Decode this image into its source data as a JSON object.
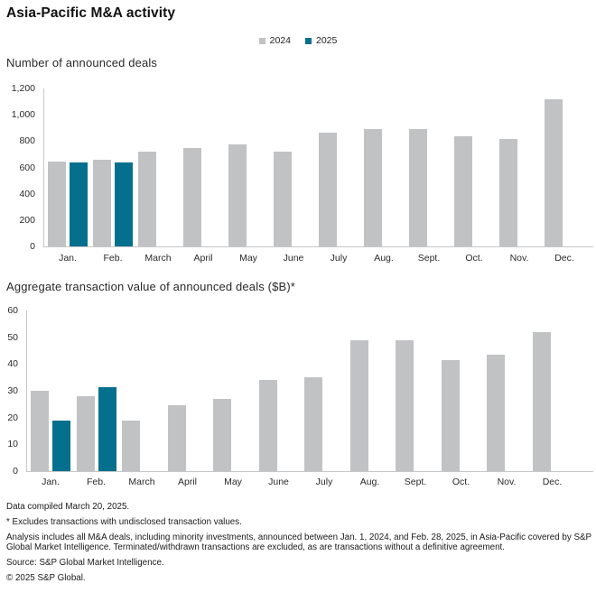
{
  "title": "Asia-Pacific M&A activity",
  "legend": {
    "items": [
      {
        "label": "2024",
        "color": "#c1c2c4"
      },
      {
        "label": "2025",
        "color": "#04708e"
      }
    ]
  },
  "colors": {
    "series_2024": "#c1c2c4",
    "series_2025": "#04708e",
    "axis_line": "#c6c7c9",
    "text": "#1a1a1a"
  },
  "chart_data": [
    {
      "type": "bar",
      "title": "Number of announced deals",
      "categories": [
        "Jan.",
        "Feb.",
        "March",
        "April",
        "May",
        "June",
        "July",
        "Aug.",
        "Sept.",
        "Oct.",
        "Nov.",
        "Dec."
      ],
      "series": [
        {
          "name": "2024",
          "color": "#c1c2c4",
          "values": [
            645,
            655,
            720,
            745,
            775,
            720,
            865,
            890,
            890,
            840,
            815,
            1120
          ]
        },
        {
          "name": "2025",
          "color": "#04708e",
          "values": [
            635,
            640,
            null,
            null,
            null,
            null,
            null,
            null,
            null,
            null,
            null,
            null
          ]
        }
      ],
      "xlabel": "",
      "ylabel": "",
      "ylim": [
        0,
        1200
      ],
      "yticks": [
        0,
        200,
        400,
        600,
        800,
        1000,
        1200
      ],
      "ytick_labels": [
        "0",
        "200",
        "400",
        "600",
        "800",
        "1,000",
        "1,200"
      ],
      "grid": false,
      "legend_position": "top-center"
    },
    {
      "type": "bar",
      "title": "Aggregate transaction value of announced deals ($B)*",
      "categories": [
        "Jan.",
        "Feb.",
        "March",
        "April",
        "May",
        "June",
        "July",
        "Aug.",
        "Sept.",
        "Oct.",
        "Nov.",
        "Dec."
      ],
      "series": [
        {
          "name": "2024",
          "color": "#c1c2c4",
          "values": [
            30,
            28,
            19,
            24.5,
            27,
            34,
            35,
            49,
            49,
            41.5,
            43.5,
            52
          ]
        },
        {
          "name": "2025",
          "color": "#04708e",
          "values": [
            19,
            31.5,
            null,
            null,
            null,
            null,
            null,
            null,
            null,
            null,
            null,
            null
          ]
        }
      ],
      "xlabel": "",
      "ylabel": "",
      "ylim": [
        0,
        60
      ],
      "yticks": [
        0,
        10,
        20,
        30,
        40,
        50,
        60
      ],
      "ytick_labels": [
        "0",
        "10",
        "20",
        "30",
        "40",
        "50",
        "60"
      ],
      "grid": false,
      "legend_position": "top-center"
    }
  ],
  "footer": {
    "lines": [
      "Data compiled March 20, 2025.",
      "* Excludes transactions with undisclosed transaction values.",
      "Analysis includes all M&A deals, including minority investments, announced between Jan. 1, 2024, and Feb. 28, 2025, in Asia-Pacific covered by S&P Global Market Intelligence. Terminated/withdrawn transactions are excluded, as are transactions without a definitive agreement.",
      "Source: S&P Global Market Intelligence.",
      "© 2025 S&P Global."
    ]
  }
}
